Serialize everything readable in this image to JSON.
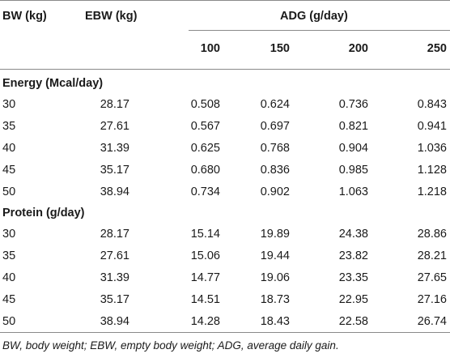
{
  "headers": {
    "bw": "BW (kg)",
    "ebw": "EBW (kg)",
    "adg": "ADG (g/day)",
    "adg_levels": [
      "100",
      "150",
      "200",
      "250"
    ]
  },
  "sections": [
    {
      "title": "Energy (Mcal/day)",
      "rows": [
        [
          "30",
          "28.17",
          "0.508",
          "0.624",
          "0.736",
          "0.843"
        ],
        [
          "35",
          "27.61",
          "0.567",
          "0.697",
          "0.821",
          "0.941"
        ],
        [
          "40",
          "31.39",
          "0.625",
          "0.768",
          "0.904",
          "1.036"
        ],
        [
          "45",
          "35.17",
          "0.680",
          "0.836",
          "0.985",
          "1.128"
        ],
        [
          "50",
          "38.94",
          "0.734",
          "0.902",
          "1.063",
          "1.218"
        ]
      ]
    },
    {
      "title": "Protein (g/day)",
      "rows": [
        [
          "30",
          "28.17",
          "15.14",
          "19.89",
          "24.38",
          "28.86"
        ],
        [
          "35",
          "27.61",
          "15.06",
          "19.44",
          "23.82",
          "28.21"
        ],
        [
          "40",
          "31.39",
          "14.77",
          "19.06",
          "23.35",
          "27.65"
        ],
        [
          "45",
          "35.17",
          "14.51",
          "18.73",
          "22.95",
          "27.16"
        ],
        [
          "50",
          "38.94",
          "14.28",
          "18.43",
          "22.58",
          "26.74"
        ]
      ]
    }
  ],
  "footnote": "BW, body weight; EBW, empty body weight; ADG, average daily gain."
}
